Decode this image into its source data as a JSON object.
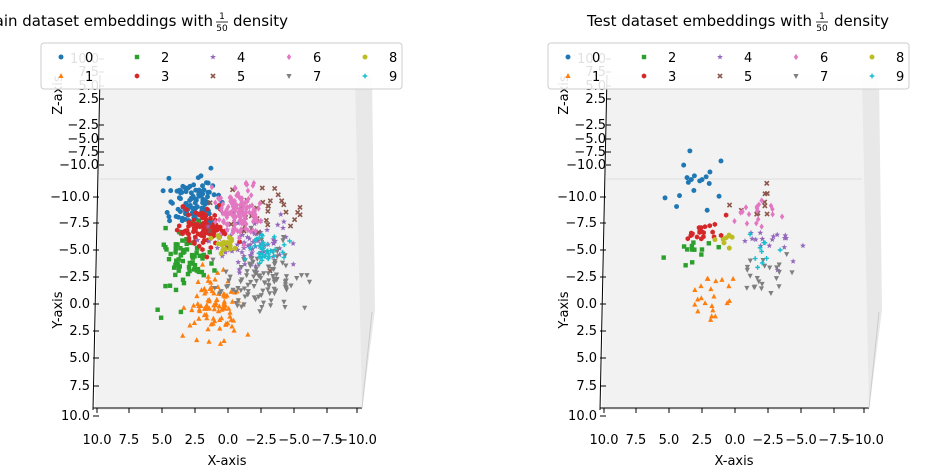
{
  "colors": [
    "#1f77b4",
    "#ff7f0e",
    "#2ca02c",
    "#d62728",
    "#9467bd",
    "#8c564b",
    "#e377c2",
    "#7f7f7f",
    "#bcbd22",
    "#17becf"
  ],
  "markers": [
    "circle",
    "triangle-up",
    "square",
    "hexagon",
    "star",
    "x",
    "diamond",
    "triangle-down",
    "octagon",
    "plus"
  ],
  "legend_labels": [
    "0",
    "1",
    "2",
    "3",
    "4",
    "5",
    "6",
    "7",
    "8",
    "9"
  ],
  "chart_data": [
    {
      "type": "scatter",
      "projection": "3d",
      "title_prefix": "Train dataset embeddings with",
      "title_frac_num": "1",
      "title_frac_den": "50",
      "title_suffix": "density",
      "xlabel": "X-axis",
      "ylabel": "Y-axis",
      "zlabel": "Z-axis",
      "x_ticks": [
        "10.0",
        "7.5",
        "5.0",
        "2.5",
        "0.0",
        "−2.5",
        "−5.0",
        "−7.5",
        "−10.0"
      ],
      "y_ticks": [
        "−10.0",
        "−7.5",
        "−5.0",
        "−2.5",
        "0.0",
        "2.5",
        "5.0",
        "7.5",
        "10.0"
      ],
      "z_ticks": [
        "10.0",
        "7.5",
        "5.0",
        "2.5",
        "−2.5",
        "−5.0",
        "−7.5",
        "−10.0"
      ],
      "xlim": [
        10,
        -10
      ],
      "ylim": [
        -10,
        10
      ],
      "legend": "top",
      "clusters": [
        {
          "label": "0",
          "x": 2.5,
          "y": -9.5,
          "sx": 0.9,
          "sy": 1.1,
          "n": 110
        },
        {
          "label": "1",
          "x": 0.8,
          "y": 0.0,
          "sx": 0.9,
          "sy": 1.5,
          "n": 95
        },
        {
          "label": "2",
          "x": 3.2,
          "y": -4.5,
          "sx": 0.9,
          "sy": 1.6,
          "n": 70
        },
        {
          "label": "3",
          "x": 1.8,
          "y": -7.2,
          "sx": 0.8,
          "sy": 0.9,
          "n": 100
        },
        {
          "label": "4",
          "x": -1.8,
          "y": -5.5,
          "sx": 1.6,
          "sy": 1.2,
          "n": 85
        },
        {
          "label": "5",
          "x": -2.5,
          "y": -8.0,
          "sx": 2.0,
          "sy": 1.5,
          "n": 35
        },
        {
          "label": "6",
          "x": -0.9,
          "y": -8.5,
          "sx": 0.9,
          "sy": 1.2,
          "n": 140
        },
        {
          "label": "7",
          "x": -2.6,
          "y": -2.5,
          "sx": 1.4,
          "sy": 1.5,
          "n": 110
        },
        {
          "label": "8",
          "x": 0.2,
          "y": -5.6,
          "sx": 0.5,
          "sy": 0.5,
          "n": 20
        },
        {
          "label": "9",
          "x": -3.2,
          "y": -5.0,
          "sx": 0.8,
          "sy": 0.8,
          "n": 40
        }
      ]
    },
    {
      "type": "scatter",
      "projection": "3d",
      "title_prefix": "Test dataset embeddings with",
      "title_frac_num": "1",
      "title_frac_den": "50",
      "title_suffix": "density",
      "xlabel": "X-axis",
      "ylabel": "Y-axis",
      "zlabel": "Z-axis",
      "x_ticks": [
        "10.0",
        "7.5",
        "5.0",
        "2.5",
        "0.0",
        "−2.5",
        "−5.0",
        "−7.5",
        "−10.0"
      ],
      "y_ticks": [
        "−10.0",
        "−7.5",
        "−5.0",
        "−2.5",
        "0.0",
        "2.5",
        "5.0",
        "7.5",
        "10.0"
      ],
      "z_ticks": [
        "10.0",
        "7.5",
        "5.0",
        "2.5",
        "−2.5",
        "−5.0",
        "−7.5",
        "−10.0"
      ],
      "xlim": [
        10,
        -10
      ],
      "ylim": [
        -10,
        10
      ],
      "legend": "top",
      "clusters": [
        {
          "label": "0",
          "x": 2.8,
          "y": -11.0,
          "sx": 1.2,
          "sy": 1.6,
          "n": 18
        },
        {
          "label": "1",
          "x": 1.6,
          "y": -1.0,
          "sx": 0.9,
          "sy": 1.2,
          "n": 22
        },
        {
          "label": "2",
          "x": 3.2,
          "y": -5.2,
          "sx": 1.0,
          "sy": 0.6,
          "n": 14
        },
        {
          "label": "3",
          "x": 2.2,
          "y": -7.0,
          "sx": 0.7,
          "sy": 0.6,
          "n": 20
        },
        {
          "label": "4",
          "x": -3.0,
          "y": -5.8,
          "sx": 1.5,
          "sy": 0.9,
          "n": 18
        },
        {
          "label": "5",
          "x": -2.6,
          "y": -9.5,
          "sx": 1.2,
          "sy": 1.0,
          "n": 10
        },
        {
          "label": "6",
          "x": -1.8,
          "y": -8.5,
          "sx": 0.9,
          "sy": 0.9,
          "n": 18
        },
        {
          "label": "7",
          "x": -2.4,
          "y": -2.6,
          "sx": 1.1,
          "sy": 1.1,
          "n": 22
        },
        {
          "label": "8",
          "x": 0.6,
          "y": -6.2,
          "sx": 0.4,
          "sy": 0.4,
          "n": 8
        },
        {
          "label": "9",
          "x": -2.0,
          "y": -5.2,
          "sx": 0.6,
          "sy": 0.6,
          "n": 10
        }
      ]
    }
  ]
}
